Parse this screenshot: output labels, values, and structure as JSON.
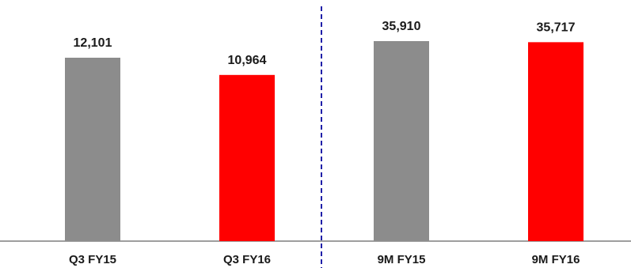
{
  "chart_data": [
    {
      "type": "bar",
      "categories": [
        "Q3 FY15",
        "Q3 FY16"
      ],
      "values": [
        12101,
        10964
      ],
      "data_labels": [
        "12,101",
        "10,964"
      ],
      "bar_colors": [
        "#8c8c8c",
        "#ff0000"
      ],
      "ylim": [
        0,
        12101
      ]
    },
    {
      "type": "bar",
      "categories": [
        "9M FY15",
        "9M FY16"
      ],
      "values": [
        35910,
        35717
      ],
      "data_labels": [
        "35,910",
        "35,717"
      ],
      "bar_colors": [
        "#8c8c8c",
        "#ff0000"
      ],
      "ylim": [
        0,
        35910
      ]
    }
  ],
  "colors": {
    "axis": "#7f7f7f",
    "divider": "#1f1fa8",
    "text": "#1a1a1a"
  }
}
